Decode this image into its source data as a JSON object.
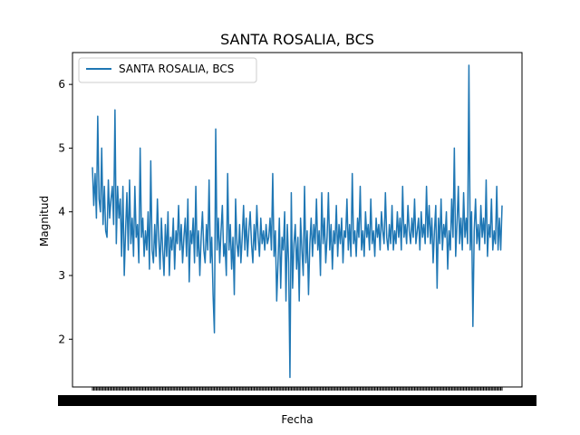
{
  "chart_data": {
    "type": "line",
    "title": "SANTA ROSALIA, BCS",
    "xlabel": "Fecha",
    "ylabel": "Magnitud",
    "ylim": [
      1.25,
      6.5
    ],
    "yticks": [
      2,
      3,
      4,
      5,
      6
    ],
    "grid": false,
    "legend": "upper-left",
    "colors": {
      "series": "#1f77b4"
    },
    "series": [
      {
        "name": "SANTA ROSALIA, BCS",
        "values": [
          4.7,
          4.1,
          4.6,
          3.9,
          5.5,
          4.2,
          4.0,
          5.0,
          3.8,
          4.4,
          3.7,
          3.6,
          4.5,
          3.9,
          4.2,
          4.4,
          3.8,
          5.6,
          3.5,
          4.4,
          3.9,
          4.2,
          3.3,
          4.4,
          3.0,
          3.7,
          4.3,
          3.4,
          4.5,
          3.5,
          3.9,
          3.3,
          4.4,
          3.6,
          3.8,
          3.2,
          5.0,
          3.6,
          3.9,
          3.3,
          3.7,
          3.4,
          4.0,
          3.1,
          4.8,
          3.4,
          3.2,
          3.8,
          3.3,
          4.2,
          3.6,
          3.1,
          3.9,
          3.4,
          3.0,
          3.8,
          3.3,
          4.0,
          3.0,
          3.6,
          3.4,
          3.9,
          3.1,
          3.7,
          3.5,
          4.1,
          3.4,
          3.8,
          3.2,
          3.6,
          3.9,
          3.3,
          4.2,
          2.9,
          3.7,
          3.5,
          3.9,
          3.2,
          4.4,
          3.3,
          3.7,
          3.0,
          3.6,
          4.0,
          3.4,
          3.2,
          3.8,
          3.4,
          4.5,
          3.2,
          3.6,
          2.7,
          2.1,
          5.3,
          3.4,
          3.9,
          3.2,
          3.7,
          4.1,
          3.3,
          3.5,
          3.0,
          4.6,
          3.4,
          3.8,
          3.1,
          3.6,
          2.7,
          4.2,
          3.5,
          3.3,
          3.8,
          3.2,
          3.6,
          4.1,
          3.4,
          3.9,
          3.3,
          3.7,
          4.0,
          3.5,
          3.2,
          3.8,
          3.4,
          4.1,
          3.6,
          3.3,
          3.9,
          3.5,
          3.7,
          3.4,
          3.8,
          3.5,
          3.6,
          3.9,
          3.4,
          4.6,
          3.3,
          3.7,
          2.6,
          3.2,
          3.9,
          2.8,
          3.6,
          3.4,
          4.0,
          2.6,
          3.8,
          3.2,
          1.4,
          4.3,
          2.8,
          3.5,
          3.8,
          3.1,
          3.6,
          2.6,
          3.9,
          3.4,
          3.0,
          4.4,
          3.2,
          3.7,
          2.7,
          3.5,
          3.9,
          3.3,
          3.8,
          3.5,
          4.2,
          3.4,
          3.7,
          3.0,
          4.3,
          3.5,
          3.9,
          3.2,
          3.6,
          4.3,
          3.4,
          3.8,
          3.1,
          3.7,
          3.5,
          4.1,
          3.3,
          3.8,
          3.5,
          3.9,
          3.2,
          3.7,
          3.6,
          4.2,
          3.4,
          3.8,
          3.3,
          4.6,
          3.5,
          3.7,
          3.3,
          3.9,
          3.6,
          4.4,
          3.4,
          3.7,
          3.3,
          4.0,
          3.6,
          3.8,
          3.4,
          4.2,
          3.5,
          3.7,
          3.3,
          3.9,
          3.6,
          3.8,
          3.4,
          4.0,
          3.7,
          3.5,
          4.3,
          3.6,
          3.4,
          3.8,
          3.5,
          4.1,
          3.4,
          3.7,
          3.5,
          4.0,
          3.6,
          3.9,
          3.4,
          4.4,
          3.6,
          3.8,
          3.5,
          4.1,
          3.7,
          3.5,
          3.9,
          3.6,
          4.2,
          3.5,
          3.7,
          3.9,
          3.4,
          4.0,
          3.6,
          3.8,
          3.5,
          4.4,
          3.6,
          4.1,
          3.5,
          3.9,
          3.2,
          3.7,
          4.1,
          2.8,
          3.9,
          3.5,
          4.2,
          3.4,
          3.8,
          3.6,
          4.0,
          3.1,
          3.7,
          3.4,
          4.2,
          3.6,
          5.0,
          3.3,
          3.8,
          4.4,
          3.5,
          3.9,
          3.4,
          4.3,
          3.6,
          3.9,
          3.5,
          6.3,
          3.4,
          4.0,
          2.2,
          3.7,
          4.2,
          3.5,
          3.8,
          3.4,
          4.1,
          3.6,
          3.9,
          3.5,
          4.5,
          3.3,
          3.8,
          3.6,
          4.2,
          3.4,
          3.7,
          3.5,
          4.4,
          3.4,
          3.9,
          3.4,
          4.1
        ]
      }
    ]
  }
}
